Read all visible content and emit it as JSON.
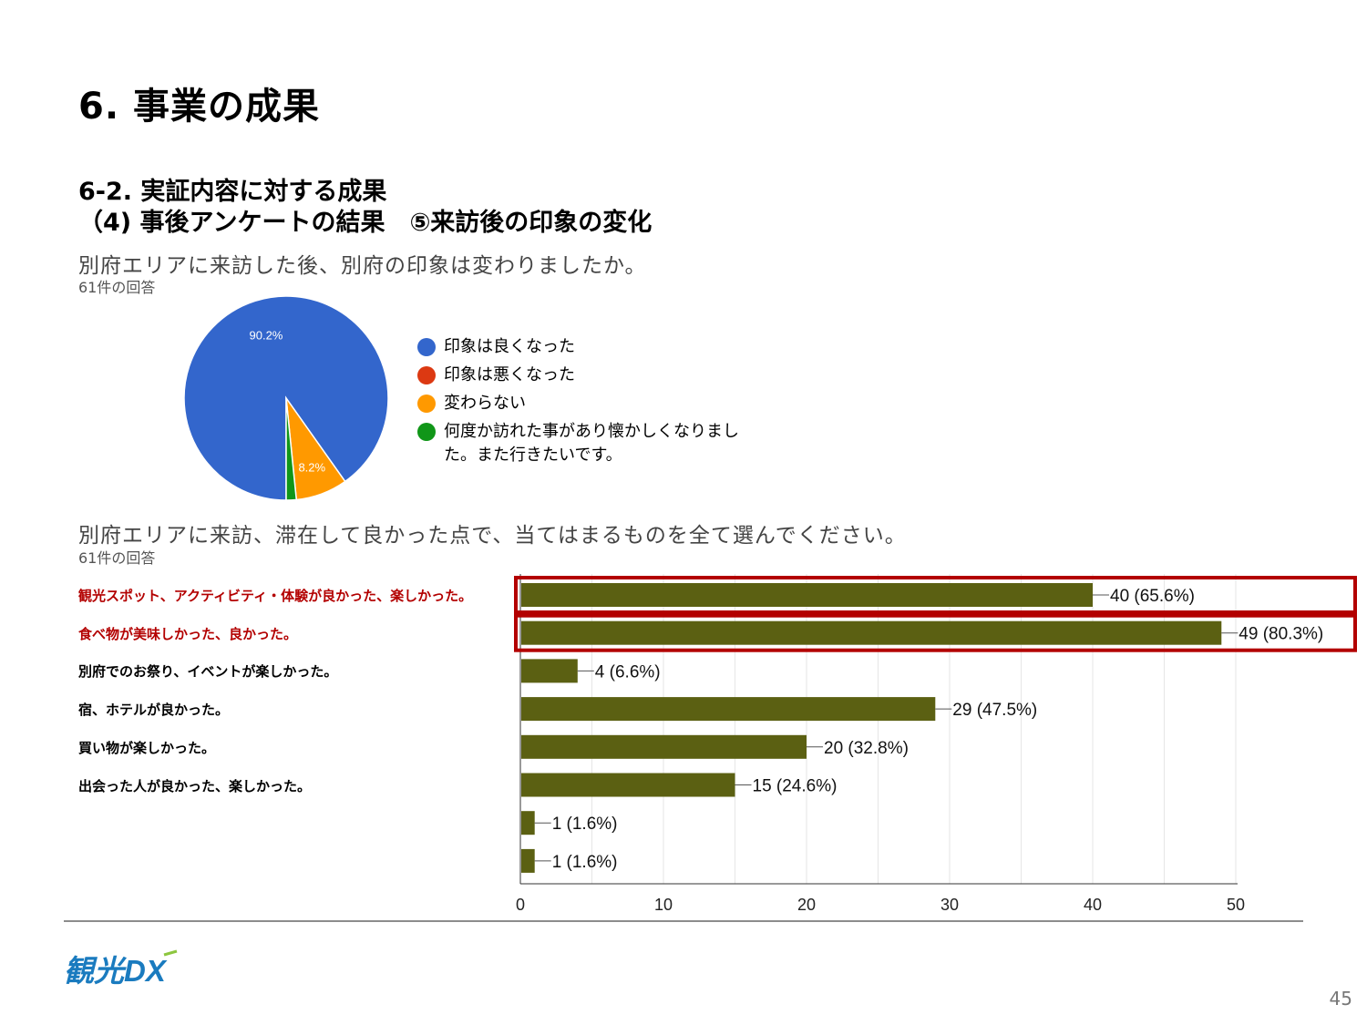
{
  "slide": {
    "title": "6. 事業の成果",
    "subtitle_line1": "6-2. 実証内容に対する成果",
    "subtitle_line2": "（4) 事後アンケートの結果　⑤来訪後の印象の変化",
    "logo_text": "観光DX",
    "page_number": "45"
  },
  "questions": {
    "q1": {
      "text": "別府エリアに来訪した後、別府の印象は変わりましたか。",
      "count": "61件の回答"
    },
    "q2": {
      "text": "別府エリアに来訪、滞在して良かった点で、当てはまるものを全て選んでください。",
      "count": "61件の回答"
    }
  },
  "colors": {
    "bar": "#5b6012",
    "highlight": "#b30000",
    "grid": "#e6e6e6",
    "axis": "#333333"
  },
  "chart_data": [
    {
      "type": "pie",
      "title": "別府エリアに来訪した後、別府の印象は変わりましたか。",
      "legend_position": "right",
      "slices": [
        {
          "label": "印象は良くなった",
          "value": 90.2,
          "color": "#3366cc",
          "data_label": "90.2%"
        },
        {
          "label": "印象は悪くなった",
          "value": 0,
          "color": "#dc3912",
          "data_label": ""
        },
        {
          "label": "変わらない",
          "value": 8.2,
          "color": "#ff9900",
          "data_label": "8.2%"
        },
        {
          "label": "何度か訪れた事があり懐かしくなりました。また行きたいです。",
          "label_lines": [
            "何度か訪れた事があり懐かしくなりまし",
            "た。また行きたいです。"
          ],
          "value": 1.6,
          "color": "#109618",
          "data_label": ""
        }
      ]
    },
    {
      "type": "bar",
      "orientation": "horizontal",
      "title": "別府エリアに来訪、滞在して良かった点で、当てはまるものを全て選んでください。",
      "categories": [
        "観光スポット、アクティビティ・体験が良かった、楽しかった。",
        "食べ物が美味しかった、良かった。",
        "別府でのお祭り、イベントが楽しかった。",
        "宿、ホテルが良かった。",
        "買い物が楽しかった。",
        "出会った人が良かった、楽しかった。",
        "",
        ""
      ],
      "values": [
        40,
        49,
        4,
        29,
        20,
        15,
        1,
        1
      ],
      "data_labels": [
        "40 (65.6%)",
        "49 (80.3%)",
        "4 (6.6%)",
        "29 (47.5%)",
        "20 (32.8%)",
        "15 (24.6%)",
        "1 (1.6%)",
        "1 (1.6%)"
      ],
      "highlighted": [
        true,
        true,
        false,
        false,
        false,
        false,
        false,
        false
      ],
      "xlim": [
        0,
        50
      ],
      "xticks": [
        0,
        10,
        20,
        30,
        40,
        50
      ],
      "grid": true
    }
  ]
}
